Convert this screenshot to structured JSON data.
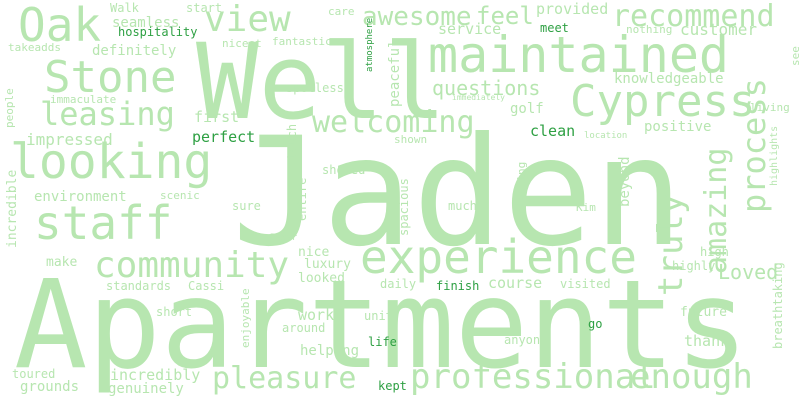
{
  "colors": {
    "background": "#ffffff",
    "light": "#b7e6b0",
    "medium": "#8fd68a",
    "dark": "#2ea043"
  },
  "words": [
    {
      "id": "jaden",
      "text": "Jaden",
      "tone": "light"
    },
    {
      "id": "apartments",
      "text": "Apartments",
      "tone": "light"
    },
    {
      "id": "well",
      "text": "Well",
      "tone": "light"
    },
    {
      "id": "maintained",
      "text": "maintained",
      "tone": "light"
    },
    {
      "id": "oak",
      "text": "Oak",
      "tone": "light"
    },
    {
      "id": "stone",
      "text": "Stone",
      "tone": "light"
    },
    {
      "id": "cypress",
      "text": "Cypress",
      "tone": "light"
    },
    {
      "id": "looking",
      "text": "looking",
      "tone": "light"
    },
    {
      "id": "staff",
      "text": "staff",
      "tone": "light"
    },
    {
      "id": "experience",
      "text": "experience",
      "tone": "light"
    },
    {
      "id": "community",
      "text": "community",
      "tone": "light"
    },
    {
      "id": "professional",
      "text": "professional",
      "tone": "light"
    },
    {
      "id": "enough",
      "text": "enough",
      "tone": "light"
    },
    {
      "id": "pleasure",
      "text": "pleasure",
      "tone": "light"
    },
    {
      "id": "view",
      "text": "view",
      "tone": "light"
    },
    {
      "id": "leasing",
      "text": "leasing",
      "tone": "light"
    },
    {
      "id": "welcoming",
      "text": "welcoming",
      "tone": "light"
    },
    {
      "id": "recommend",
      "text": "recommend",
      "tone": "light"
    },
    {
      "id": "process",
      "text": "process",
      "tone": "light"
    },
    {
      "id": "amazing",
      "text": "amazing",
      "tone": "light"
    },
    {
      "id": "truly",
      "text": "truly",
      "tone": "light"
    },
    {
      "id": "awesome",
      "text": "awesome",
      "tone": "light"
    },
    {
      "id": "feel",
      "text": "feel",
      "tone": "light"
    },
    {
      "id": "questions",
      "text": "questions",
      "tone": "light"
    },
    {
      "id": "loved",
      "text": "Loved",
      "tone": "light"
    },
    {
      "id": "customer",
      "text": "customer",
      "tone": "light"
    },
    {
      "id": "service",
      "text": "service",
      "tone": "light"
    },
    {
      "id": "provided",
      "text": "provided",
      "tone": "light"
    },
    {
      "id": "seamless",
      "text": "seamless",
      "tone": "light"
    },
    {
      "id": "definitely",
      "text": "definitely",
      "tone": "light"
    },
    {
      "id": "hospitality",
      "text": "hospitality",
      "tone": "dark"
    },
    {
      "id": "walk",
      "text": "Walk",
      "tone": "light"
    },
    {
      "id": "start",
      "text": "start",
      "tone": "light"
    },
    {
      "id": "care",
      "text": "care",
      "tone": "light"
    },
    {
      "id": "meet",
      "text": "meet",
      "tone": "dark"
    },
    {
      "id": "nothing",
      "text": "nothing",
      "tone": "light"
    },
    {
      "id": "takeadds",
      "text": "takeadds",
      "tone": "light"
    },
    {
      "id": "nicest",
      "text": "nicest",
      "tone": "light"
    },
    {
      "id": "fantastic",
      "text": "fantastic",
      "tone": "light"
    },
    {
      "id": "atmosphere",
      "text": "atmosphere",
      "tone": "dark"
    },
    {
      "id": "peaceful",
      "text": "peaceful",
      "tone": "light"
    },
    {
      "id": "spotless",
      "text": "spotless",
      "tone": "light"
    },
    {
      "id": "immaculate",
      "text": "immaculate",
      "tone": "light"
    },
    {
      "id": "knowledgeable",
      "text": "knowledgeable",
      "tone": "light"
    },
    {
      "id": "living",
      "text": "living",
      "tone": "light"
    },
    {
      "id": "see",
      "text": "see",
      "tone": "light"
    },
    {
      "id": "immediately",
      "text": "immediately",
      "tone": "light"
    },
    {
      "id": "golf",
      "text": "golf",
      "tone": "light"
    },
    {
      "id": "people",
      "text": "people",
      "tone": "light"
    },
    {
      "id": "impressed",
      "text": "impressed",
      "tone": "light"
    },
    {
      "id": "first",
      "text": "first",
      "tone": "light"
    },
    {
      "id": "perfect",
      "text": "perfect",
      "tone": "dark"
    },
    {
      "id": "touch",
      "text": "touch",
      "tone": "light"
    },
    {
      "id": "clean",
      "text": "clean",
      "tone": "dark"
    },
    {
      "id": "positive",
      "text": "positive",
      "tone": "light"
    },
    {
      "id": "location",
      "text": "location",
      "tone": "light"
    },
    {
      "id": "highlights",
      "text": "highlights",
      "tone": "light"
    },
    {
      "id": "shown",
      "text": "shown",
      "tone": "light"
    },
    {
      "id": "environment",
      "text": "environment",
      "tone": "light"
    },
    {
      "id": "scenic",
      "text": "scenic",
      "tone": "light"
    },
    {
      "id": "showed",
      "text": "showed",
      "tone": "light"
    },
    {
      "id": "reflecting",
      "text": "reflecting",
      "tone": "light"
    },
    {
      "id": "kim",
      "text": "Kim",
      "tone": "light"
    },
    {
      "id": "beyond",
      "text": "beyond",
      "tone": "light"
    },
    {
      "id": "incredible",
      "text": "incredible",
      "tone": "light"
    },
    {
      "id": "sure",
      "text": "sure",
      "tone": "light"
    },
    {
      "id": "entire",
      "text": "entire",
      "tone": "light"
    },
    {
      "id": "spacious",
      "text": "spacious",
      "tone": "light"
    },
    {
      "id": "much",
      "text": "much",
      "tone": "light"
    },
    {
      "id": "bexar",
      "text": "Bexar",
      "tone": "light"
    },
    {
      "id": "make",
      "text": "make",
      "tone": "light"
    },
    {
      "id": "nice",
      "text": "nice",
      "tone": "light"
    },
    {
      "id": "luxury",
      "text": "luxury",
      "tone": "light"
    },
    {
      "id": "high",
      "text": "high",
      "tone": "light"
    },
    {
      "id": "highly",
      "text": "highly",
      "tone": "light"
    },
    {
      "id": "looked",
      "text": "looked",
      "tone": "light"
    },
    {
      "id": "standards",
      "text": "standards",
      "tone": "light"
    },
    {
      "id": "cassi",
      "text": "Cassi",
      "tone": "light"
    },
    {
      "id": "daily",
      "text": "daily",
      "tone": "light"
    },
    {
      "id": "finish",
      "text": "finish",
      "tone": "dark"
    },
    {
      "id": "course",
      "text": "course",
      "tone": "light"
    },
    {
      "id": "visited",
      "text": "visited",
      "tone": "light"
    },
    {
      "id": "breathtaking",
      "text": "breathtaking",
      "tone": "light"
    },
    {
      "id": "short",
      "text": "short",
      "tone": "light"
    },
    {
      "id": "enjoyable",
      "text": "enjoyable",
      "tone": "light"
    },
    {
      "id": "work",
      "text": "work",
      "tone": "light"
    },
    {
      "id": "unit",
      "text": "unit",
      "tone": "light"
    },
    {
      "id": "go",
      "text": "go",
      "tone": "dark"
    },
    {
      "id": "future",
      "text": "future",
      "tone": "light"
    },
    {
      "id": "around",
      "text": "around",
      "tone": "light"
    },
    {
      "id": "anyone",
      "text": "anyone",
      "tone": "light"
    },
    {
      "id": "thank",
      "text": "thank",
      "tone": "light"
    },
    {
      "id": "life",
      "text": "life",
      "tone": "dark"
    },
    {
      "id": "helping",
      "text": "helping",
      "tone": "light"
    },
    {
      "id": "toured",
      "text": "toured",
      "tone": "light"
    },
    {
      "id": "incredibly",
      "text": "incredibly",
      "tone": "light"
    },
    {
      "id": "grounds",
      "text": "grounds",
      "tone": "light"
    },
    {
      "id": "genuinely",
      "text": "genuinely",
      "tone": "light"
    },
    {
      "id": "kept",
      "text": "kept",
      "tone": "dark"
    }
  ]
}
